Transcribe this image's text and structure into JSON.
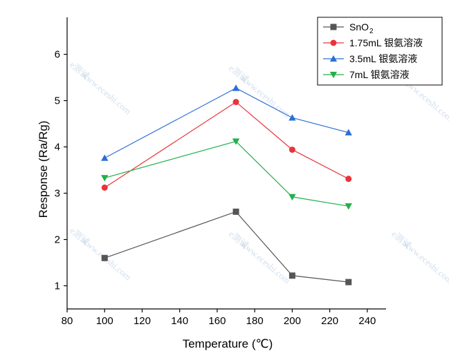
{
  "chart_data": {
    "type": "line",
    "title": "",
    "xlabel": "Temperature (℃)",
    "ylabel": "Response (Ra/Rg)",
    "xlim": [
      80,
      250
    ],
    "ylim": [
      0.5,
      6.8
    ],
    "xticks": [
      80,
      100,
      120,
      140,
      160,
      180,
      200,
      220,
      240
    ],
    "yticks": [
      1,
      2,
      3,
      4,
      5,
      6
    ],
    "grid": false,
    "legend_position": "top-right",
    "x": [
      100,
      170,
      200,
      230
    ],
    "series": [
      {
        "name": "SnO2",
        "name_main": "SnO",
        "name_sub": "2",
        "marker": "square",
        "color": "#555555",
        "values": [
          1.6,
          2.6,
          1.22,
          1.08
        ]
      },
      {
        "name": "1.75mL 银氨溶液",
        "marker": "circle",
        "color": "#e8343a",
        "values": [
          3.12,
          4.97,
          3.94,
          3.31
        ]
      },
      {
        "name": "3.5mL 银氨溶液",
        "marker": "triangle-up",
        "color": "#2b6fd6",
        "values": [
          3.76,
          5.27,
          4.63,
          4.31
        ]
      },
      {
        "name": "7mL 银氨溶液",
        "marker": "triangle-down",
        "color": "#21b04b",
        "values": [
          3.33,
          4.12,
          2.92,
          2.72
        ]
      }
    ]
  },
  "watermark": {
    "text_cn": "e测试",
    "text_url": "www.eceshi.com"
  }
}
